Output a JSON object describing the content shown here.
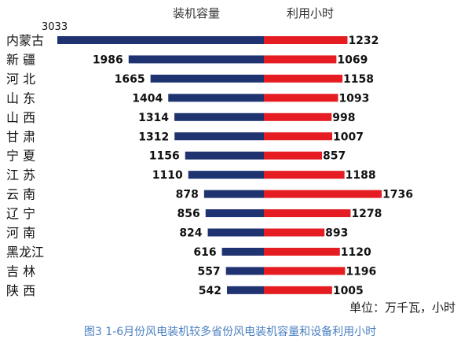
{
  "chart_data": {
    "type": "bar",
    "orientation": "horizontal-diverging",
    "title": "图3  1-6月份风电装机较多省份风电装机容量和设备利用小时",
    "unit_label": "单位：万千瓦，小时",
    "legend_placement": "top",
    "categories": [
      "内蒙古",
      "新  疆",
      "河  北",
      "山  东",
      "山  西",
      "甘  肃",
      "宁  夏",
      "江  苏",
      "云  南",
      "辽  宁",
      "河  南",
      "黑龙江",
      "吉  林",
      "陕  西"
    ],
    "series": [
      {
        "name": "装机容量",
        "color": "#1f3370",
        "direction": "left",
        "values": [
          3033,
          1986,
          1665,
          1404,
          1314,
          1312,
          1156,
          1110,
          878,
          856,
          824,
          616,
          557,
          542
        ],
        "labels": [
          "3033",
          "1986",
          "1665",
          "1404",
          "1314",
          "1312",
          "1156",
          "1110",
          "878",
          "856",
          "824",
          "616",
          "557",
          "542"
        ]
      },
      {
        "name": "利用小时",
        "color": "#e51d22",
        "direction": "right",
        "values": [
          1232,
          1069,
          1158,
          1093,
          998,
          1007,
          857,
          1188,
          1736,
          1278,
          893,
          1120,
          1196,
          1005
        ],
        "labels": [
          "1232",
          "1069",
          "1158",
          "1093",
          "998",
          "1007",
          "857",
          "1188",
          "1736",
          "1278",
          "893",
          "1120",
          "1196",
          "1005"
        ]
      }
    ],
    "left_max": 3033,
    "right_max": 1736,
    "grid": false
  }
}
